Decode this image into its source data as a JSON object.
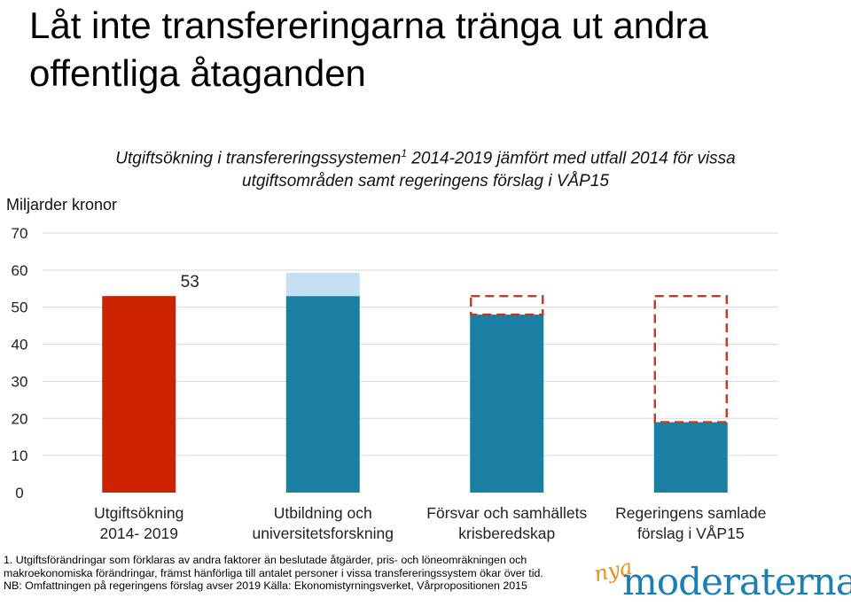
{
  "title": "Låt inte transfereringarna tränga ut andra offentliga åtaganden",
  "subtitle": {
    "line1_pre": "Utgiftsökning i transfereringssystemen",
    "line1_sup": "1",
    "line1_post": " 2014-2019 jämfört med utfall 2014 för vissa",
    "line2": "utgiftsområden samt regeringens förslag i VÅP15"
  },
  "unit_label": "Miljarder kronor",
  "footnote": {
    "line1": "1. Utgiftsförändringar som förklaras av andra faktorer än beslutade åtgärder, pris- och löneomräkningen och",
    "line2": "makroekonomiska förändringar, främst hänförliga till antalet personer i vissa transfereringssystem ökar över tid.",
    "line3": "NB: Omfattningen på regeringens förslag avser 2019  Källa: Ekonomistyrningsverket, Vårpropositionen 2015"
  },
  "logo": {
    "prefix": "nya",
    "name": "moderaterna"
  },
  "colors": {
    "red": "#cc2200",
    "teal": "#1a7fa3",
    "light_blue": "#c6dff2",
    "dashed": "#c03a22",
    "grid": "#d9d9d9"
  },
  "chart_data": {
    "type": "bar",
    "ylim": [
      0,
      70
    ],
    "yticks": [
      0,
      10,
      20,
      30,
      40,
      50,
      60,
      70
    ],
    "ylabel": "Miljarder kronor",
    "grid": true,
    "categories": [
      [
        "Utgiftsökning",
        "2014- 2019"
      ],
      [
        "Utbildning och",
        "universitetsforskning"
      ],
      [
        "Försvar och samhällets",
        "krisberedskap"
      ],
      [
        "Regeringens samlade",
        "förslag i VÅP15"
      ]
    ],
    "bars": [
      {
        "value": 53,
        "color": "red",
        "label": "53"
      },
      {
        "value": 53,
        "color": "teal",
        "extra": 6.3,
        "extra_color": "light_blue"
      },
      {
        "value": 48,
        "color": "teal",
        "dashed_to": 53
      },
      {
        "value": 19,
        "color": "teal",
        "dashed_to": 53
      }
    ]
  }
}
